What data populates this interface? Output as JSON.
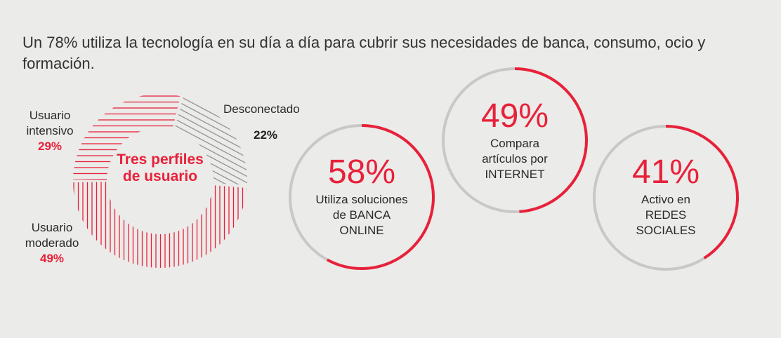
{
  "headline": "Un 78% utiliza la tecnología en su día a día para cubrir sus necesidades de banca, consumo, ocio y formación.",
  "colors": {
    "accent": "#e8213a",
    "neutral": "#c8c8c6",
    "background": "#ebebe9"
  },
  "chart_data": [
    {
      "type": "pie",
      "variant": "donut",
      "title": "Tres perfiles de usuario",
      "slices": [
        {
          "name_line1": "Usuario",
          "name_line2": "moderado",
          "value": 49,
          "label": "49%",
          "color": "#e8213a",
          "pattern": "vertical-lines"
        },
        {
          "name_line1": "Usuario",
          "name_line2": "intensivo",
          "value": 29,
          "label": "29%",
          "color": "#e8213a",
          "pattern": "horizontal-lines"
        },
        {
          "name_line1": "Desconectado",
          "name_line2": "",
          "value": 22,
          "label": "22%",
          "color": "#8a8a8a",
          "pattern": "diagonal-lines"
        }
      ]
    },
    {
      "type": "pie",
      "variant": "progress-rings",
      "rings": [
        {
          "value": 58,
          "label": "58%",
          "text_lines": [
            "Utiliza soluciones",
            "de BANCA",
            "ONLINE"
          ]
        },
        {
          "value": 49,
          "label": "49%",
          "text_lines": [
            "Compara",
            "artículos por",
            "INTERNET"
          ]
        },
        {
          "value": 41,
          "label": "41%",
          "text_lines": [
            "Activo en",
            "REDES",
            "SOCIALES"
          ]
        }
      ]
    }
  ]
}
